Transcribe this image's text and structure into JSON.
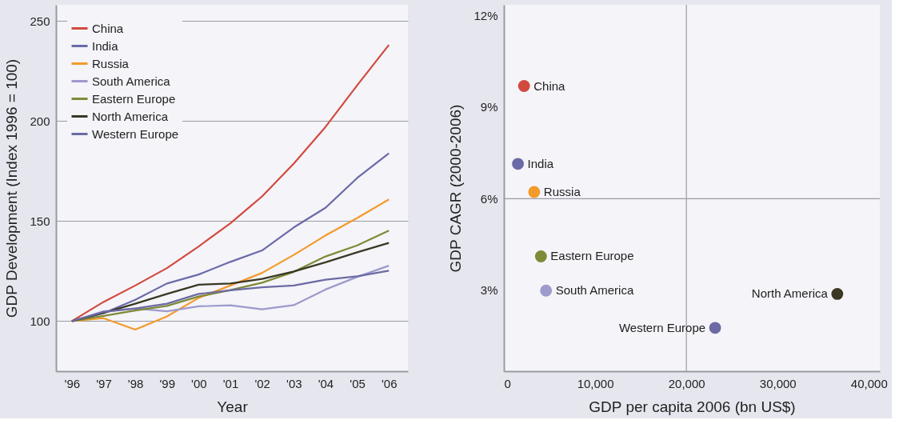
{
  "chart_data": [
    {
      "type": "line",
      "xlabel": "Year",
      "ylabel": "GDP Development (Index 1996 = 100)",
      "x": [
        1996,
        1997,
        1998,
        1999,
        2000,
        2001,
        2002,
        2003,
        2004,
        2005,
        2006
      ],
      "xlim": [
        1995.5,
        2006.6
      ],
      "xticks": [
        {
          "value": 1996,
          "label": "'96"
        },
        {
          "value": 1997,
          "label": "'97"
        },
        {
          "value": 1998,
          "label": "'98"
        },
        {
          "value": 1999,
          "label": "'99"
        },
        {
          "value": 2000,
          "label": "'00"
        },
        {
          "value": 2001,
          "label": "'01"
        },
        {
          "value": 2002,
          "label": "'02"
        },
        {
          "value": 2003,
          "label": "'03"
        },
        {
          "value": 2004,
          "label": "'04"
        },
        {
          "value": 2005,
          "label": "'05"
        },
        {
          "value": 2006,
          "label": "'06"
        }
      ],
      "ylim": [
        75,
        258
      ],
      "yticks": [
        100,
        150,
        200,
        250
      ],
      "grid": "y",
      "legend": "top left",
      "marker": "none",
      "line_style": "solid",
      "series": [
        {
          "name": "China",
          "color": "#d24a3e",
          "values": [
            100,
            109.6,
            117.8,
            126.5,
            137.3,
            148.9,
            162.3,
            178.7,
            197,
            217.8,
            238
          ]
        },
        {
          "name": "India",
          "color": "#6b6aa8",
          "values": [
            100,
            104,
            110.7,
            118.8,
            123.3,
            129.6,
            135.3,
            146.8,
            156.6,
            171.5,
            183.8
          ]
        },
        {
          "name": "Russia",
          "color": "#f39a2a",
          "values": [
            100,
            101.5,
            95.8,
            102.4,
            111.6,
            117.8,
            124.1,
            133.1,
            142.8,
            151.5,
            160.8
          ]
        },
        {
          "name": "South America",
          "color": "#9d9acc",
          "values": [
            100,
            104.9,
            106.3,
            104.9,
            107.4,
            107.9,
            105.9,
            108,
            115.8,
            122.1,
            127.7
          ]
        },
        {
          "name": "Eastern Europe",
          "color": "#7f8a36",
          "values": [
            100,
            102.6,
            105.3,
            107.6,
            112.3,
            115.5,
            119.2,
            124.6,
            132.3,
            137.8,
            145.2
          ]
        },
        {
          "name": "North America",
          "color": "#3a3824",
          "values": [
            100,
            104.1,
            108.7,
            113.6,
            118.2,
            118.8,
            121.1,
            124.8,
            129.4,
            134.4,
            139.1
          ]
        },
        {
          "name": "Western Europe",
          "color": "#6c6aa3",
          "values": [
            100,
            104.6,
            106.3,
            108.7,
            113.6,
            115.4,
            116.9,
            117.8,
            120.7,
            122.4,
            125.2
          ]
        }
      ]
    },
    {
      "type": "scatter",
      "xlabel": "GDP per capita 2006 (bn US$)",
      "ylabel": "GDP CAGR (2000-2006)",
      "xlim": [
        0,
        41200
      ],
      "xticks": [
        0,
        {
          "value": 10000,
          "label": "10,000"
        },
        {
          "value": 20000,
          "label": "20,000"
        },
        {
          "value": 30000,
          "label": "30,000"
        },
        {
          "value": 40000,
          "label": "40,000"
        }
      ],
      "ylim": [
        0.35,
        12.35
      ],
      "yticks": [
        {
          "value": 3,
          "label": "3%"
        },
        {
          "value": 6,
          "label": "6%"
        },
        {
          "value": 9,
          "label": "9%"
        },
        {
          "value": 12,
          "label": "12%"
        }
      ],
      "grid": false,
      "legend": false,
      "marker": "circle",
      "ref_lines": [
        {
          "axis": "x",
          "value": 20000
        },
        {
          "axis": "y",
          "value": 6
        }
      ],
      "series": [
        {
          "name": "China",
          "color": "#d24a3e",
          "x": [
            2210
          ],
          "values": [
            9.69
          ]
        },
        {
          "name": "India",
          "color": "#6b6aa8",
          "x": [
            1540
          ],
          "values": [
            7.14
          ]
        },
        {
          "name": "Russia",
          "color": "#f39a2a",
          "x": [
            3320
          ],
          "values": [
            6.22
          ]
        },
        {
          "name": "Eastern Europe",
          "color": "#7f8a36",
          "x": [
            4060
          ],
          "values": [
            4.11
          ]
        },
        {
          "name": "South America",
          "color": "#9d9acc",
          "x": [
            4620
          ],
          "values": [
            2.99
          ]
        },
        {
          "name": "North America",
          "color": "#3a3824",
          "x": [
            36540
          ],
          "values": [
            2.88
          ]
        },
        {
          "name": "Western Europe",
          "color": "#6c6aa3",
          "x": [
            23150
          ],
          "values": [
            1.77
          ]
        }
      ]
    }
  ]
}
